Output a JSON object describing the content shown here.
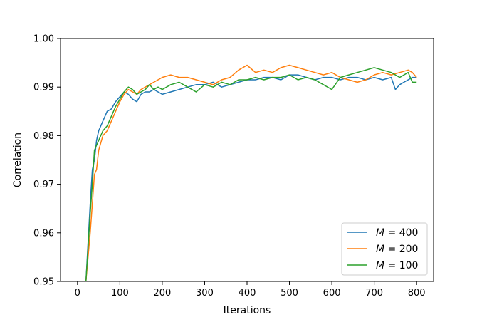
{
  "chart_data": {
    "type": "line",
    "title": "",
    "xlabel": "Iterations",
    "ylabel": "Correlation",
    "xlim": [
      -40,
      840
    ],
    "ylim": [
      0.95,
      1.0
    ],
    "x_ticks": [
      0,
      100,
      200,
      300,
      400,
      500,
      600,
      700,
      800
    ],
    "y_ticks": [
      0.95,
      0.96,
      0.97,
      0.98,
      0.99,
      1.0
    ],
    "x_tick_labels": [
      "0",
      "100",
      "200",
      "300",
      "400",
      "500",
      "600",
      "700",
      "800"
    ],
    "y_tick_labels": [
      "0.95",
      "0.96",
      "0.97",
      "0.98",
      "0.99",
      "1.00"
    ],
    "legend_position": "lower-right",
    "grid": false,
    "series": [
      {
        "name": "M = 400",
        "legend_var": "M",
        "legend_val": "400",
        "color": "#1f77b4",
        "x": [
          20,
          25,
          30,
          35,
          40,
          45,
          50,
          60,
          70,
          80,
          90,
          100,
          110,
          120,
          130,
          140,
          150,
          160,
          170,
          180,
          190,
          200,
          220,
          240,
          260,
          280,
          300,
          320,
          340,
          360,
          380,
          400,
          420,
          440,
          460,
          480,
          500,
          520,
          540,
          560,
          580,
          600,
          620,
          640,
          660,
          680,
          700,
          720,
          740,
          750,
          760,
          770,
          780,
          790,
          800
        ],
        "y": [
          0.95,
          0.958,
          0.966,
          0.973,
          0.975,
          0.979,
          0.981,
          0.983,
          0.985,
          0.9855,
          0.987,
          0.988,
          0.989,
          0.9885,
          0.9875,
          0.987,
          0.9885,
          0.989,
          0.989,
          0.9895,
          0.989,
          0.9885,
          0.989,
          0.9895,
          0.99,
          0.9905,
          0.9905,
          0.991,
          0.99,
          0.9905,
          0.991,
          0.9915,
          0.9915,
          0.992,
          0.992,
          0.9915,
          0.9925,
          0.9925,
          0.992,
          0.9915,
          0.992,
          0.992,
          0.9915,
          0.992,
          0.992,
          0.9915,
          0.992,
          0.9915,
          0.992,
          0.9895,
          0.9905,
          0.991,
          0.9915,
          0.992,
          0.992
        ]
      },
      {
        "name": "M = 200",
        "legend_var": "M",
        "legend_val": "200",
        "color": "#ff7f0e",
        "x": [
          20,
          25,
          30,
          35,
          40,
          45,
          50,
          60,
          70,
          80,
          90,
          100,
          110,
          120,
          130,
          140,
          150,
          160,
          170,
          180,
          190,
          200,
          220,
          240,
          260,
          280,
          300,
          320,
          340,
          360,
          380,
          400,
          420,
          440,
          460,
          480,
          500,
          520,
          540,
          560,
          580,
          600,
          620,
          640,
          660,
          680,
          700,
          720,
          740,
          760,
          780,
          790,
          800
        ],
        "y": [
          0.95,
          0.955,
          0.96,
          0.966,
          0.972,
          0.973,
          0.977,
          0.98,
          0.981,
          0.983,
          0.985,
          0.987,
          0.9885,
          0.9895,
          0.989,
          0.9885,
          0.9895,
          0.99,
          0.9905,
          0.991,
          0.9915,
          0.992,
          0.9925,
          0.992,
          0.992,
          0.9915,
          0.991,
          0.9905,
          0.9915,
          0.992,
          0.9935,
          0.9945,
          0.993,
          0.9935,
          0.993,
          0.994,
          0.9945,
          0.994,
          0.9935,
          0.993,
          0.9925,
          0.993,
          0.992,
          0.9915,
          0.991,
          0.9915,
          0.9925,
          0.993,
          0.9925,
          0.993,
          0.9935,
          0.993,
          0.992
        ]
      },
      {
        "name": "M = 100",
        "legend_var": "M",
        "legend_val": "100",
        "color": "#2ca02c",
        "x": [
          20,
          25,
          30,
          35,
          40,
          45,
          50,
          60,
          70,
          80,
          90,
          100,
          110,
          120,
          130,
          140,
          150,
          160,
          170,
          180,
          190,
          200,
          220,
          240,
          260,
          280,
          300,
          320,
          340,
          360,
          380,
          400,
          420,
          440,
          460,
          480,
          500,
          520,
          540,
          560,
          580,
          600,
          620,
          640,
          660,
          680,
          700,
          720,
          740,
          760,
          780,
          790,
          800
        ],
        "y": [
          0.95,
          0.957,
          0.964,
          0.97,
          0.977,
          0.978,
          0.979,
          0.981,
          0.982,
          0.984,
          0.986,
          0.9875,
          0.989,
          0.99,
          0.9895,
          0.9885,
          0.989,
          0.9895,
          0.9905,
          0.9895,
          0.99,
          0.9895,
          0.9905,
          0.991,
          0.99,
          0.989,
          0.9905,
          0.99,
          0.991,
          0.9905,
          0.9915,
          0.9915,
          0.992,
          0.9915,
          0.992,
          0.992,
          0.9925,
          0.9915,
          0.992,
          0.9915,
          0.9905,
          0.9895,
          0.992,
          0.9925,
          0.993,
          0.9935,
          0.994,
          0.9935,
          0.993,
          0.992,
          0.993,
          0.991,
          0.991
        ]
      }
    ]
  }
}
